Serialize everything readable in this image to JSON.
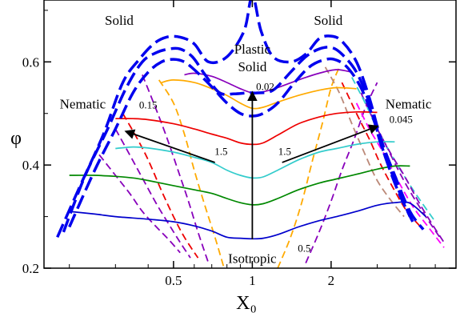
{
  "chart_data": {
    "type": "line",
    "xlabel": "X₀",
    "ylabel": "φ",
    "xscale": "log",
    "xlim": [
      0.16,
      6.0
    ],
    "ylim": [
      0.2,
      0.72
    ],
    "xticks": [
      {
        "value": 0.5,
        "label": "0.5"
      },
      {
        "value": 1,
        "label": "1"
      },
      {
        "value": 2,
        "label": "2"
      }
    ],
    "yticks": [
      {
        "value": 0.2,
        "label": "0.2"
      },
      {
        "value": 0.4,
        "label": "0.4"
      },
      {
        "value": 0.6,
        "label": "0.6"
      }
    ],
    "grid": false,
    "legend": "none",
    "colors": {
      "boundary": "#0000ee",
      "blue": "#0000cc",
      "green": "#008800",
      "cyan": "#33cccc",
      "red": "#ee0000",
      "orange": "#ffaa00",
      "purple": "#8800bb",
      "brown": "#bb8877",
      "magenta": "#ff00ff",
      "axis": "#000000"
    },
    "series": [
      {
        "id": "boundary-left-outer",
        "color": "boundary",
        "style": "dash-thick",
        "x": [
          0.18,
          0.22,
          0.27,
          0.32,
          0.37,
          0.42,
          0.47,
          0.53,
          0.6,
          0.68,
          0.8,
          0.93,
          1.0,
          1.08,
          1.2,
          1.4,
          1.6,
          1.8,
          2.0,
          2.2,
          2.5,
          2.8,
          3.1,
          3.5,
          4.0,
          4.5
        ],
        "y": [
          0.26,
          0.36,
          0.46,
          0.56,
          0.605,
          0.635,
          0.648,
          0.648,
          0.635,
          0.6,
          0.61,
          0.66,
          0.728,
          0.66,
          0.61,
          0.6,
          0.615,
          0.645,
          0.65,
          0.64,
          0.6,
          0.53,
          0.45,
          0.38,
          0.31,
          0.275
        ]
      },
      {
        "id": "boundary-mid",
        "color": "boundary",
        "style": "dash-thick",
        "x": [
          0.19,
          0.23,
          0.28,
          0.33,
          0.38,
          0.43,
          0.48,
          0.53,
          0.59,
          0.66,
          0.75,
          0.85,
          0.95,
          1.0,
          1.05,
          1.2,
          1.4,
          1.6,
          1.8,
          2.0,
          2.2,
          2.5,
          2.8,
          3.1,
          3.5,
          4.0
        ],
        "y": [
          0.27,
          0.38,
          0.47,
          0.55,
          0.6,
          0.618,
          0.625,
          0.625,
          0.61,
          0.575,
          0.54,
          0.538,
          0.54,
          0.54,
          0.54,
          0.545,
          0.58,
          0.61,
          0.625,
          0.628,
          0.615,
          0.58,
          0.52,
          0.44,
          0.37,
          0.3
        ]
      },
      {
        "id": "boundary-inner",
        "color": "boundary",
        "style": "dash-thick",
        "x": [
          0.2,
          0.25,
          0.3,
          0.35,
          0.4,
          0.45,
          0.5,
          0.55,
          0.6,
          0.66,
          0.72,
          0.8,
          0.9,
          1.0,
          1.1,
          1.25,
          1.45,
          1.65,
          1.85,
          2.05,
          2.3,
          2.6,
          2.9,
          3.2,
          3.6,
          4.1
        ],
        "y": [
          0.28,
          0.39,
          0.47,
          0.54,
          0.58,
          0.6,
          0.605,
          0.6,
          0.585,
          0.565,
          0.545,
          0.52,
          0.5,
          0.495,
          0.5,
          0.52,
          0.56,
          0.59,
          0.603,
          0.605,
          0.59,
          0.55,
          0.49,
          0.42,
          0.35,
          0.29
        ]
      },
      {
        "id": "blue",
        "color": "blue",
        "style": "solid",
        "x": [
          0.2,
          0.25,
          0.3,
          0.4,
          0.5,
          0.6,
          0.7,
          0.8,
          0.9,
          1.0,
          1.1,
          1.25,
          1.5,
          1.8,
          2.1,
          2.5,
          3.0,
          3.5,
          4.0,
          4.6
        ],
        "y": [
          0.31,
          0.305,
          0.3,
          0.295,
          0.29,
          0.282,
          0.272,
          0.26,
          0.258,
          0.257,
          0.258,
          0.265,
          0.28,
          0.292,
          0.3,
          0.31,
          0.322,
          0.327,
          0.326,
          0.3
        ]
      },
      {
        "id": "green",
        "color": "green",
        "style": "solid",
        "x": [
          0.2,
          0.25,
          0.3,
          0.35,
          0.4,
          0.5,
          0.6,
          0.7,
          0.8,
          0.9,
          1.0,
          1.1,
          1.25,
          1.5,
          1.8,
          2.1,
          2.5,
          3.0,
          3.5,
          4.0
        ],
        "y": [
          0.38,
          0.38,
          0.378,
          0.375,
          0.37,
          0.36,
          0.352,
          0.345,
          0.335,
          0.327,
          0.323,
          0.325,
          0.335,
          0.352,
          0.365,
          0.373,
          0.382,
          0.392,
          0.398,
          0.398
        ]
      },
      {
        "id": "cyan",
        "color": "cyan",
        "style": "solid",
        "x": [
          0.3,
          0.35,
          0.4,
          0.5,
          0.6,
          0.7,
          0.8,
          0.9,
          1.0,
          1.1,
          1.25,
          1.5,
          1.8,
          2.1,
          2.5,
          3.0,
          3.5
        ],
        "y": [
          0.432,
          0.435,
          0.433,
          0.425,
          0.415,
          0.405,
          0.39,
          0.38,
          0.375,
          0.377,
          0.39,
          0.41,
          0.425,
          0.432,
          0.44,
          0.445,
          0.445
        ]
      },
      {
        "id": "red",
        "color": "red",
        "style": "solid",
        "x": [
          0.3,
          0.35,
          0.4,
          0.5,
          0.6,
          0.7,
          0.8,
          0.9,
          1.0,
          1.1,
          1.25,
          1.5,
          1.8,
          2.1,
          2.5,
          3.0
        ],
        "y": [
          0.49,
          0.49,
          0.488,
          0.48,
          0.47,
          0.46,
          0.452,
          0.443,
          0.44,
          0.443,
          0.458,
          0.48,
          0.493,
          0.5,
          0.503,
          0.502
        ]
      },
      {
        "id": "orange",
        "color": "orange",
        "style": "solid",
        "x": [
          0.45,
          0.5,
          0.6,
          0.7,
          0.8,
          0.9,
          1.0,
          1.1,
          1.25,
          1.5,
          1.8,
          2.1,
          2.5
        ],
        "y": [
          0.56,
          0.565,
          0.56,
          0.548,
          0.535,
          0.52,
          0.51,
          0.512,
          0.522,
          0.535,
          0.545,
          0.55,
          0.548
        ]
      },
      {
        "id": "purple-solid",
        "color": "purple",
        "style": "solid",
        "x": [
          0.55,
          0.6,
          0.7,
          0.8,
          0.9,
          1.0,
          1.1,
          1.25,
          1.5,
          1.8,
          2.1,
          2.4
        ],
        "y": [
          0.575,
          0.578,
          0.572,
          0.56,
          0.548,
          0.54,
          0.542,
          0.55,
          0.565,
          0.578,
          0.585,
          0.58
        ]
      },
      {
        "id": "dash-orange-left",
        "color": "orange",
        "style": "dash",
        "x": [
          0.44,
          0.5,
          0.55,
          0.6,
          0.66,
          0.72,
          0.78
        ],
        "y": [
          0.565,
          0.52,
          0.46,
          0.39,
          0.32,
          0.26,
          0.2
        ]
      },
      {
        "id": "dash-purple-left-1",
        "color": "purple",
        "style": "dash",
        "x": [
          0.38,
          0.42,
          0.47,
          0.52,
          0.57,
          0.62,
          0.68
        ],
        "y": [
          0.575,
          0.52,
          0.455,
          0.39,
          0.33,
          0.27,
          0.21
        ]
      },
      {
        "id": "dash-red-left",
        "color": "red",
        "style": "dash",
        "x": [
          0.32,
          0.36,
          0.4,
          0.45,
          0.5,
          0.55,
          0.62
        ],
        "y": [
          0.5,
          0.455,
          0.41,
          0.35,
          0.3,
          0.26,
          0.22
        ]
      },
      {
        "id": "dash-purple-left-2",
        "color": "purple",
        "style": "dash",
        "x": [
          0.3,
          0.34,
          0.38,
          0.43,
          0.48,
          0.53,
          0.58
        ],
        "y": [
          0.47,
          0.42,
          0.375,
          0.325,
          0.285,
          0.25,
          0.22
        ]
      },
      {
        "id": "dash-purple-left-3",
        "color": "purple",
        "style": "dash",
        "x": [
          0.26,
          0.3,
          0.34,
          0.38,
          0.43,
          0.48,
          0.53
        ],
        "y": [
          0.42,
          0.38,
          0.345,
          0.31,
          0.28,
          0.255,
          0.23
        ]
      },
      {
        "id": "dash-orange-right",
        "color": "orange",
        "style": "dash",
        "x": [
          1.25,
          1.4,
          1.55,
          1.7,
          1.85,
          2.0,
          2.15
        ],
        "y": [
          0.2,
          0.26,
          0.33,
          0.41,
          0.48,
          0.55,
          0.59
        ]
      },
      {
        "id": "dash-purple-right-1",
        "color": "purple",
        "style": "dash",
        "x": [
          1.6,
          1.8,
          2.0,
          2.2,
          2.45,
          2.7,
          3.0
        ],
        "y": [
          0.21,
          0.27,
          0.33,
          0.39,
          0.45,
          0.51,
          0.56
        ]
      },
      {
        "id": "dash-brown-right",
        "color": "brown",
        "style": "dash",
        "x": [
          1.9,
          2.15,
          2.4,
          2.7,
          3.0,
          3.4,
          3.8
        ],
        "y": [
          0.59,
          0.54,
          0.48,
          0.42,
          0.37,
          0.33,
          0.3
        ]
      },
      {
        "id": "dash-red-right",
        "color": "red",
        "style": "dash",
        "x": [
          2.2,
          2.5,
          2.8,
          3.1,
          3.5,
          3.9,
          4.4
        ],
        "y": [
          0.56,
          0.5,
          0.45,
          0.4,
          0.35,
          0.31,
          0.28
        ]
      },
      {
        "id": "dash-purple-right-2",
        "color": "purple",
        "style": "dash",
        "x": [
          2.6,
          2.95,
          3.3,
          3.7,
          4.1,
          4.6,
          5.2
        ],
        "y": [
          0.54,
          0.48,
          0.43,
          0.38,
          0.34,
          0.3,
          0.26
        ]
      },
      {
        "id": "dash-magenta-right",
        "color": "magenta",
        "style": "dash",
        "x": [
          2.5,
          2.8,
          3.2,
          3.6,
          4.1,
          4.7,
          5.4
        ],
        "y": [
          0.52,
          0.47,
          0.42,
          0.37,
          0.32,
          0.28,
          0.24
        ]
      },
      {
        "id": "dash-cyan-right",
        "color": "cyan",
        "style": "dash",
        "x": [
          2.4,
          2.7,
          3.0,
          3.4,
          3.9,
          4.4,
          5.0
        ],
        "y": [
          0.57,
          0.52,
          0.47,
          0.42,
          0.37,
          0.33,
          0.29
        ]
      },
      {
        "id": "dash-purple-right-3",
        "color": "purple",
        "style": "dash",
        "x": [
          3.0,
          3.4,
          3.8,
          4.3,
          4.8,
          5.4
        ],
        "y": [
          0.47,
          0.42,
          0.38,
          0.33,
          0.29,
          0.25
        ]
      }
    ],
    "arrows": [
      {
        "id": "arrow-center",
        "from": [
          1.0,
          0.256
        ],
        "to": [
          1.0,
          0.54
        ]
      },
      {
        "id": "arrow-left",
        "from": [
          0.72,
          0.405
        ],
        "to": [
          0.33,
          0.465
        ]
      },
      {
        "id": "arrow-right",
        "from": [
          1.3,
          0.405
        ],
        "to": [
          3.0,
          0.475
        ]
      }
    ],
    "annotations": [
      {
        "id": "solid-left",
        "text": "Solid",
        "x": 0.31,
        "y": 0.672,
        "size": "ann"
      },
      {
        "id": "solid-right",
        "text": "Solid",
        "x": 1.95,
        "y": 0.672,
        "size": "ann"
      },
      {
        "id": "plastic",
        "text": "Plastic",
        "x": 1.0,
        "y": 0.616,
        "size": "ann"
      },
      {
        "id": "plastic-solid",
        "text": "Solid",
        "x": 1.0,
        "y": 0.582,
        "size": "ann"
      },
      {
        "id": "v-002",
        "text": "0.02",
        "x": 1.12,
        "y": 0.545,
        "size": "ann-small"
      },
      {
        "id": "nematic-left",
        "text": "Nematic",
        "x": 0.225,
        "y": 0.51,
        "size": "ann"
      },
      {
        "id": "v-015",
        "text": "0.15",
        "x": 0.4,
        "y": 0.51,
        "size": "ann-small"
      },
      {
        "id": "nematic-right",
        "text": "Nematic",
        "x": 3.95,
        "y": 0.51,
        "size": "ann"
      },
      {
        "id": "v-0045",
        "text": "0.045",
        "x": 3.7,
        "y": 0.482,
        "size": "ann-small"
      },
      {
        "id": "v-15-left",
        "text": "1.5",
        "x": 0.76,
        "y": 0.42,
        "size": "ann-small"
      },
      {
        "id": "v-15-right",
        "text": "1.5",
        "x": 1.33,
        "y": 0.42,
        "size": "ann-small"
      },
      {
        "id": "isotropic",
        "text": "Isotropic",
        "x": 1.0,
        "y": 0.21,
        "size": "ann"
      },
      {
        "id": "v-05",
        "text": "0.5",
        "x": 1.58,
        "y": 0.232,
        "size": "ann-small"
      }
    ]
  }
}
